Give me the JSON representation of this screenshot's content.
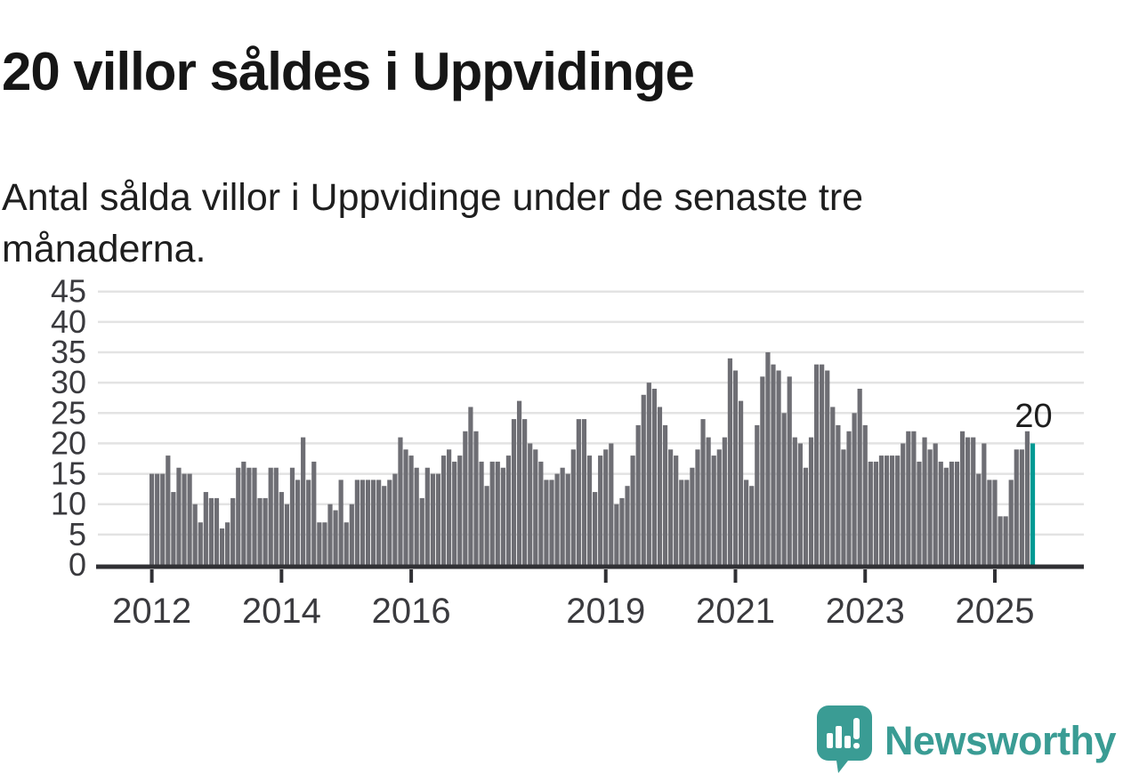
{
  "header": {
    "title": "20 villor såldes i Uppvidinge",
    "subtitle": "Antal sålda villor i Uppvidinge under de senaste tre månaderna."
  },
  "chart_data": {
    "type": "bar",
    "title": "20 villor såldes i Uppvidinge",
    "subtitle": "Antal sålda villor i Uppvidinge under de senaste tre månaderna.",
    "x_start": "2012-01",
    "x_end": "2025-08",
    "x_period": "monthly (rolling 3-month total)",
    "values": [
      15,
      15,
      15,
      18,
      12,
      16,
      15,
      15,
      10,
      7,
      12,
      11,
      11,
      6,
      7,
      11,
      16,
      17,
      16,
      16,
      11,
      11,
      16,
      16,
      12,
      10,
      16,
      14,
      21,
      14,
      17,
      7,
      7,
      10,
      9,
      14,
      7,
      10,
      14,
      14,
      14,
      14,
      14,
      13,
      14,
      15,
      21,
      19,
      18,
      16,
      11,
      16,
      15,
      15,
      18,
      19,
      17,
      18,
      22,
      26,
      22,
      17,
      13,
      17,
      17,
      16,
      18,
      24,
      27,
      24,
      20,
      19,
      17,
      14,
      14,
      15,
      16,
      15,
      19,
      24,
      24,
      18,
      12,
      18,
      19,
      20,
      10,
      11,
      13,
      18,
      23,
      28,
      30,
      29,
      26,
      23,
      19,
      18,
      14,
      14,
      16,
      19,
      24,
      21,
      18,
      19,
      21,
      34,
      32,
      27,
      14,
      13,
      23,
      31,
      35,
      33,
      32,
      25,
      31,
      21,
      20,
      16,
      21,
      33,
      33,
      32,
      26,
      23,
      19,
      22,
      25,
      29,
      23,
      17,
      17,
      18,
      18,
      18,
      18,
      20,
      22,
      22,
      17,
      21,
      19,
      20,
      17,
      16,
      17,
      17,
      22,
      21,
      21,
      15,
      20,
      14,
      14,
      8,
      8,
      14,
      19,
      19,
      22,
      20
    ],
    "highlight": {
      "index": 163,
      "value": 20,
      "label": "20"
    },
    "x_tick_labels": [
      "2012",
      "2014",
      "2016",
      "2019",
      "2021",
      "2023",
      "2025"
    ],
    "x_tick_month_indices": [
      0,
      24,
      48,
      84,
      108,
      132,
      156
    ],
    "y_ticks": [
      0,
      5,
      10,
      15,
      20,
      25,
      30,
      35,
      40,
      45
    ],
    "ylim": [
      0,
      45
    ],
    "grid": true,
    "legend": "none",
    "colors": {
      "bar": "#6e6e74",
      "highlight": "#009a94",
      "grid": "#e3e3e3",
      "axis": "#303034",
      "tick_label": "#3a3a3e",
      "annotation": "#1d1d1d"
    }
  },
  "footer": {
    "logo_text": "Newsworthy",
    "logo_color": "#3a9c94",
    "logo_icon": "speech-bubble-with-bar-chart-and-exclamation"
  }
}
